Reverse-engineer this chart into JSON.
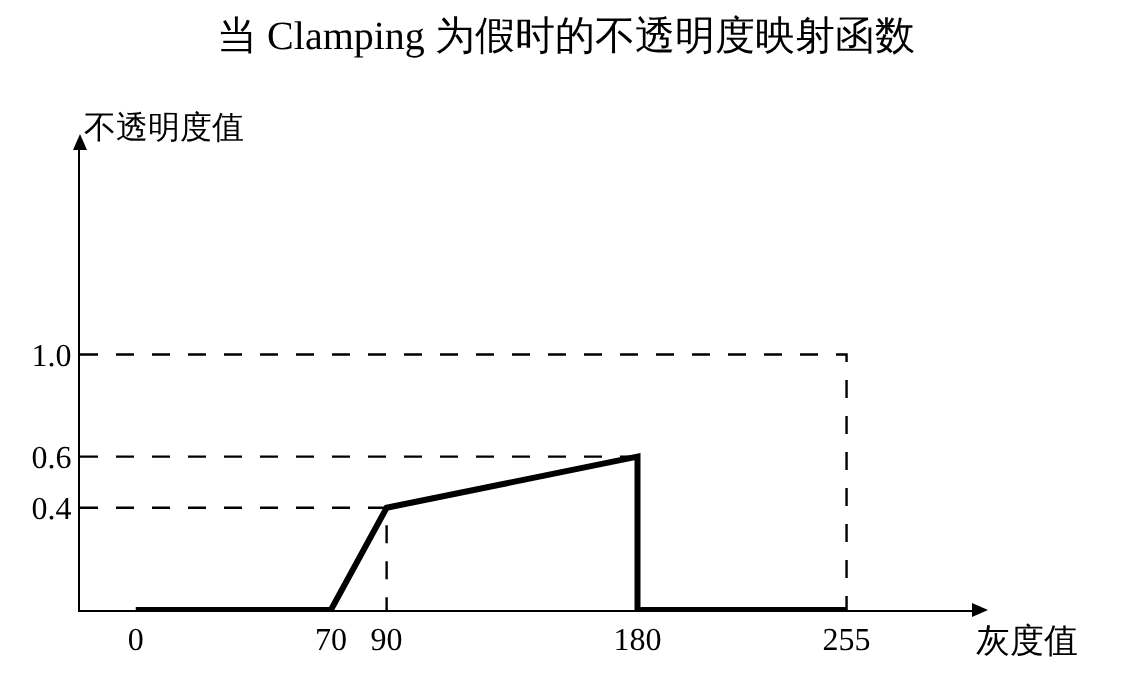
{
  "chart_data": {
    "type": "line",
    "title": "当 Clamping 为假时的不透明度映射函数",
    "xlabel": "灰度值",
    "ylabel": "不透明度值",
    "xlim": [
      -20,
      300
    ],
    "ylim": [
      0,
      1.8
    ],
    "xticks": [
      0,
      70,
      90,
      180,
      255
    ],
    "yticks": [
      {
        "value": 0.4,
        "label": "0.4"
      },
      {
        "value": 0.6,
        "label": "0.6"
      },
      {
        "value": 1.0,
        "label": "1.0"
      }
    ],
    "grid": false,
    "marker": "none",
    "series": [
      {
        "color": "#000000",
        "line_style": "solid",
        "x": [
          0,
          70,
          90,
          180,
          180,
          255
        ],
        "values": [
          0,
          0,
          0.4,
          0.6,
          0,
          0
        ]
      },
      {
        "color": "#000000",
        "line_style": "dashed",
        "x": [
          -20,
          255,
          255
        ],
        "values": [
          1,
          1,
          0
        ]
      },
      {
        "color": "#000000",
        "line_style": "dashed",
        "x": [
          -20,
          180
        ],
        "values": [
          0.6,
          0.6
        ]
      },
      {
        "color": "#000000",
        "line_style": "dashed",
        "x": [
          -20,
          90,
          90
        ],
        "values": [
          0.4,
          0.4,
          0
        ]
      }
    ]
  }
}
